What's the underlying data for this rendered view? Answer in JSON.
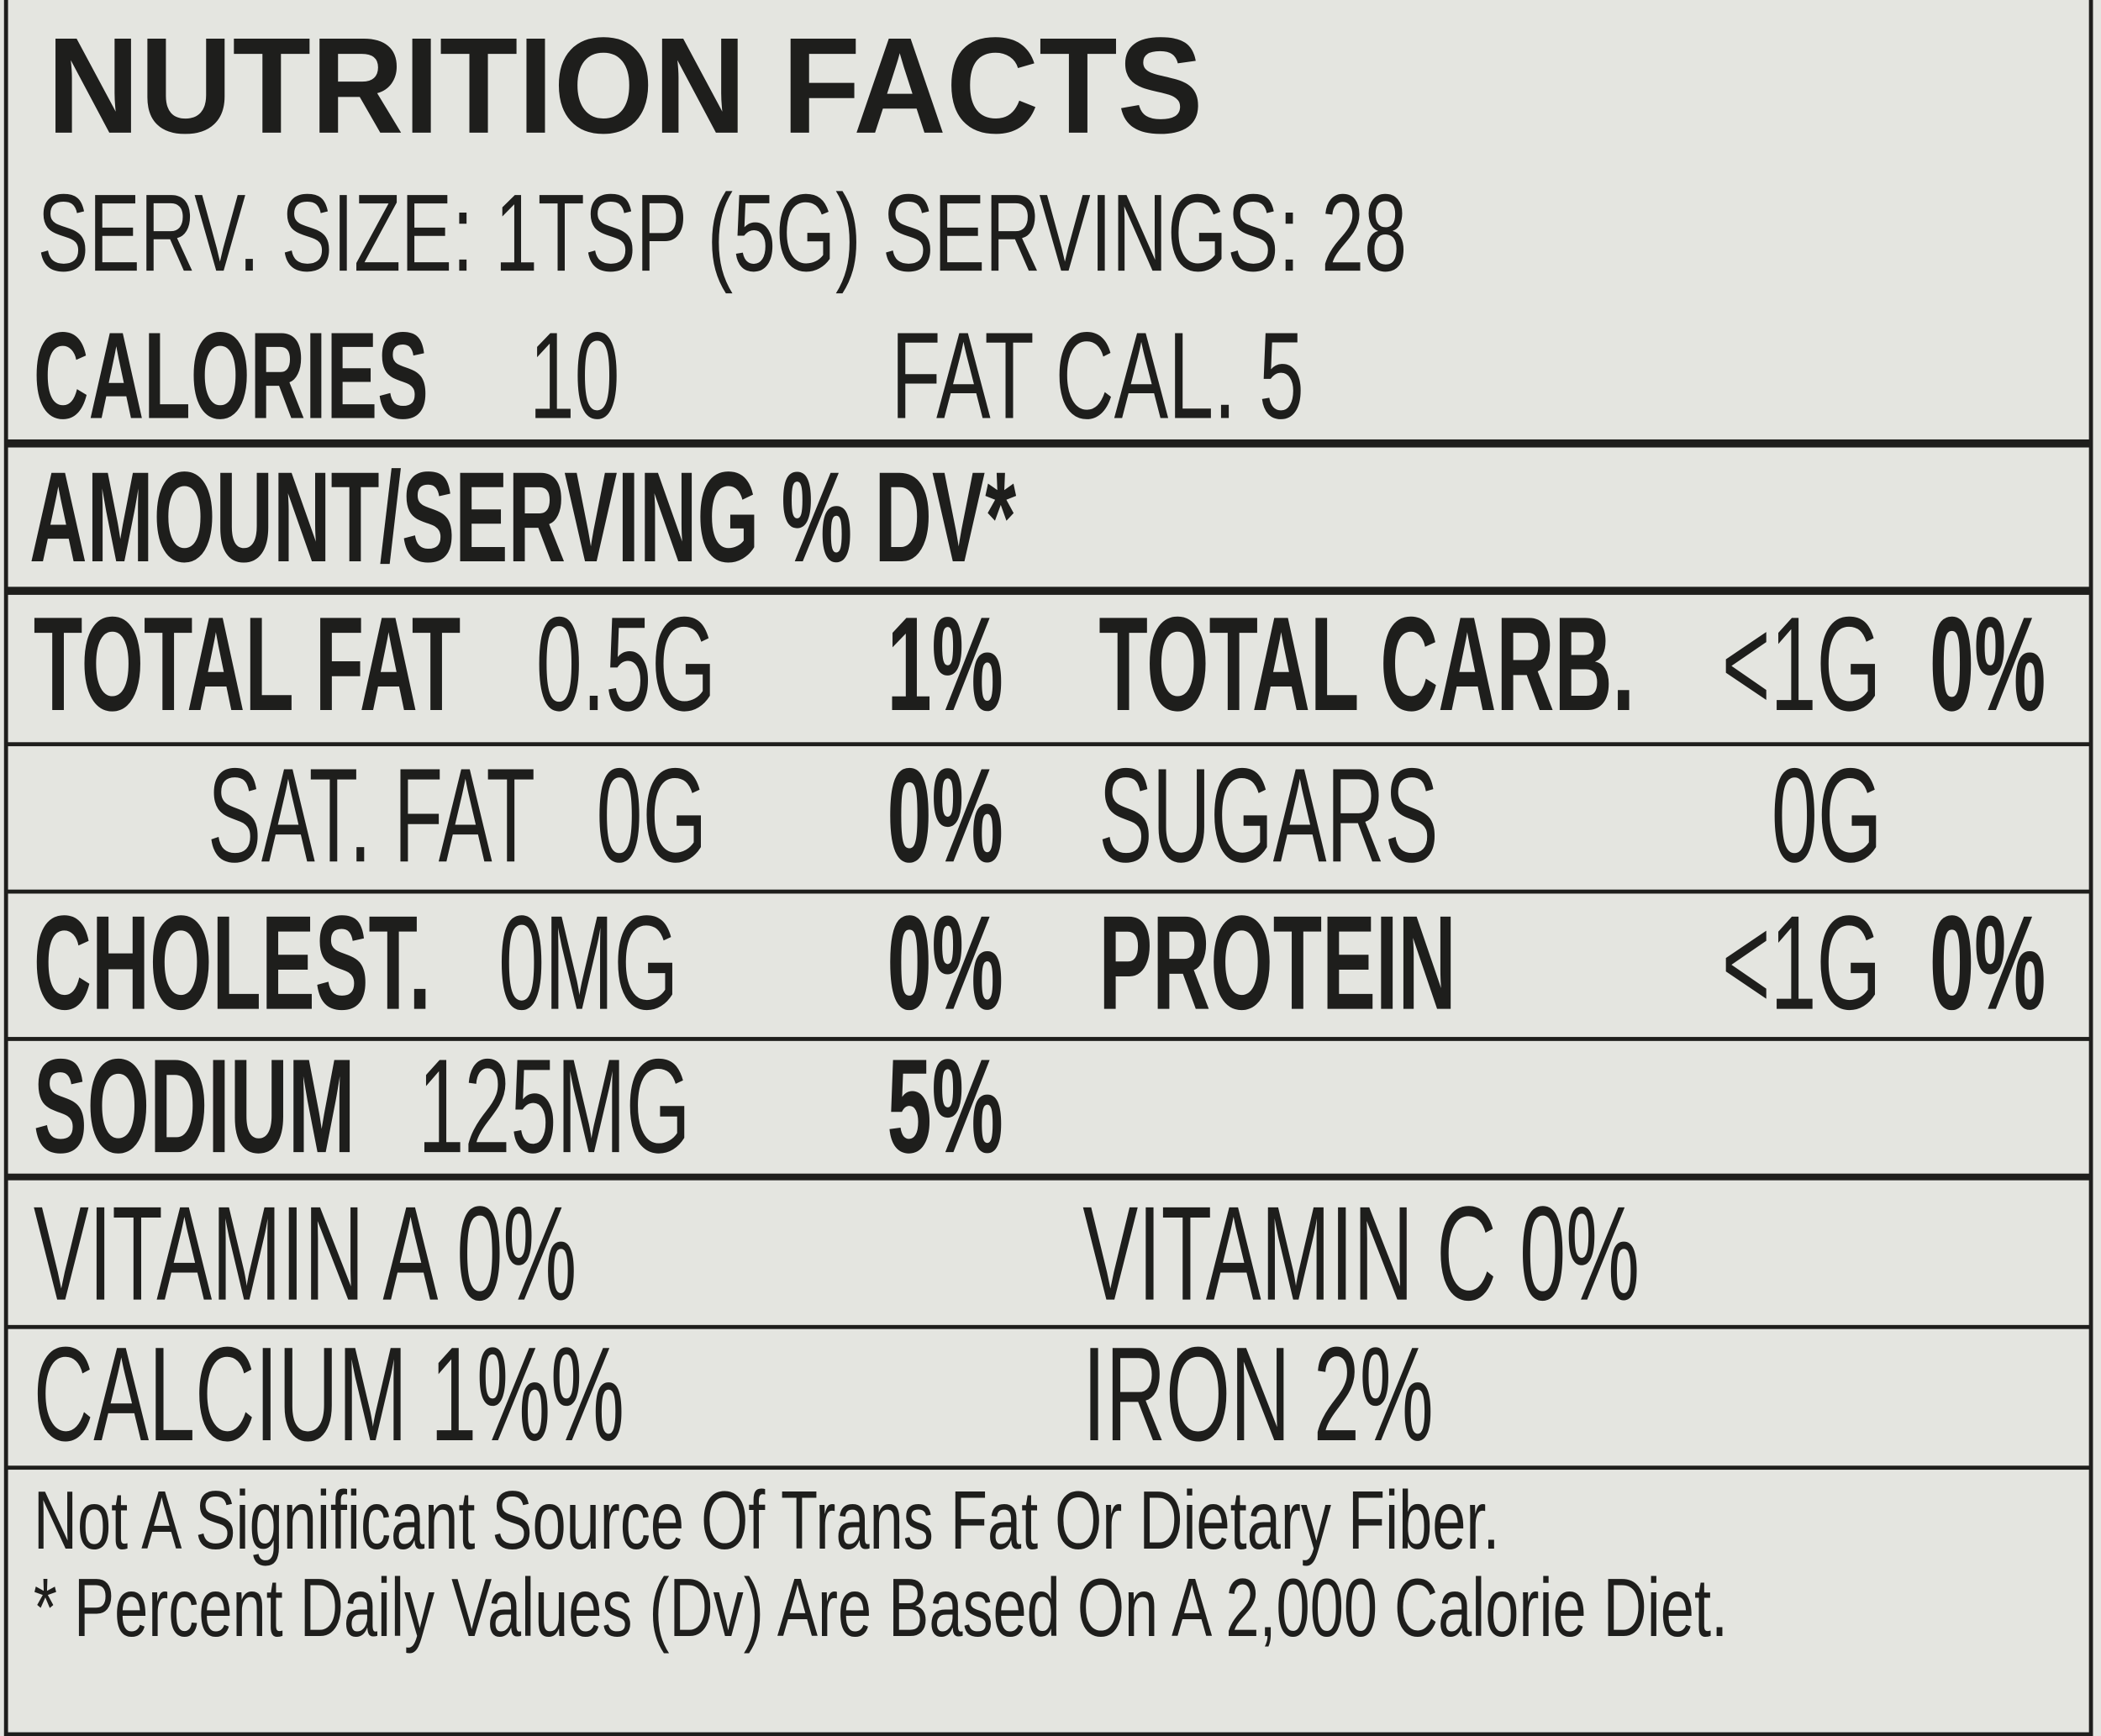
{
  "header": {
    "title": "NUTRITION FACTS",
    "serving": "SERV. SIZE: 1TSP (5G) SERVINGS: 28"
  },
  "calories": {
    "label": "CALORIES",
    "value": "10",
    "fat_cal": "FAT CAL. 5"
  },
  "amount_header": "AMOUNT/SERVING % DV*",
  "left_nutrients": [
    {
      "label": "TOTAL FAT",
      "amount": "0.5G",
      "dv": "1%"
    },
    {
      "label": "SAT. FAT",
      "amount": "0G",
      "dv": "0%"
    },
    {
      "label": "CHOLEST.",
      "amount": "0MG",
      "dv": "0%"
    },
    {
      "label": "SODIUM",
      "amount": "125MG",
      "dv": "5%"
    }
  ],
  "right_nutrients": [
    {
      "label": "TOTAL CARB.",
      "amount": "<1G",
      "dv": "0%"
    },
    {
      "label": "SUGARS",
      "amount": "0G"
    },
    {
      "label": "PROTEIN",
      "amount": "<1G",
      "dv": "0%"
    }
  ],
  "vitamins": [
    "VITAMIN A 0%",
    "VITAMIN C 0%",
    "CALCIUM 1%%",
    "IRON 2%"
  ],
  "footnotes": [
    "Not A Significant Source Of Trans Fat Or Dietary Fiber.",
    "* Percent Daily Values (Dv) Are Based On A 2,000 Calorie Diet."
  ]
}
